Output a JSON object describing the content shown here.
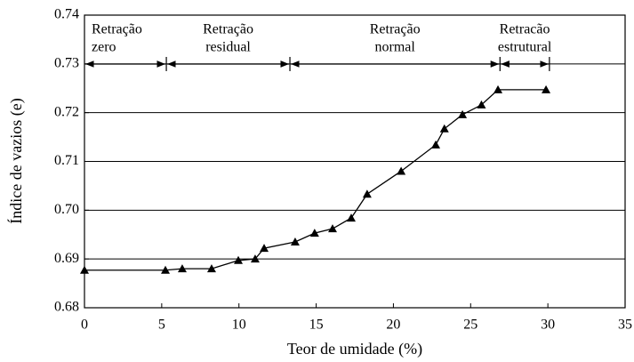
{
  "chart_data": {
    "type": "line",
    "xlabel": "Teor de umidade (%)",
    "ylabel": "Índice de vazios (e)",
    "xlim": [
      0,
      35
    ],
    "xticks": [
      0,
      5,
      10,
      15,
      20,
      25,
      30,
      35
    ],
    "ylim": [
      0.68,
      0.74
    ],
    "yticks": [
      0.68,
      0.69,
      {
        "value": 0.7,
        "label": "0.70"
      },
      0.71,
      0.72,
      0.73,
      0.74
    ],
    "grid": true,
    "series": [
      {
        "color": "#000000",
        "x": [
          0,
          5.24,
          6.33,
          8.23,
          9.96,
          11.05,
          11.63,
          13.64,
          14.9,
          16.06,
          17.27,
          18.3,
          20.5,
          22.74,
          23.3,
          24.47,
          25.7,
          26.77,
          29.88
        ],
        "values": [
          0.6877,
          0.6877,
          0.688,
          0.688,
          0.6897,
          0.69,
          0.6922,
          0.6935,
          0.6953,
          0.6962,
          0.6984,
          0.7033,
          0.708,
          0.7134,
          0.7167,
          0.7196,
          0.7216,
          0.7247,
          0.7247
        ]
      }
    ],
    "regions": [
      {
        "label": [
          "Retração",
          "zero"
        ],
        "x": [
          0,
          5.3
        ]
      },
      {
        "label": [
          "Retração",
          "residual"
        ],
        "x": [
          5.3,
          13.3
        ]
      },
      {
        "label": [
          "Retração",
          "normal"
        ],
        "x": [
          13.3,
          26.9
        ]
      },
      {
        "label": [
          "Retracão",
          "estrutural"
        ],
        "x": [
          26.9,
          30.1
        ]
      }
    ]
  }
}
